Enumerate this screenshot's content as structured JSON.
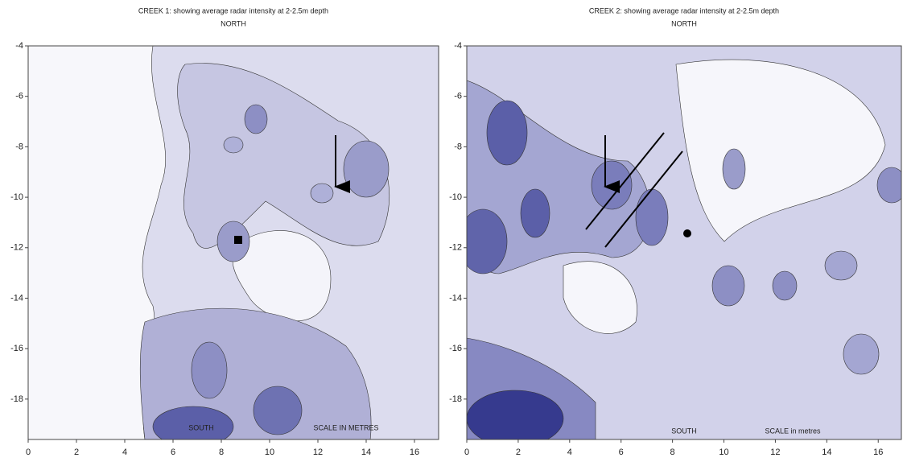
{
  "chart_data": [
    {
      "type": "contour",
      "title": "CREEK 1: showing average radar intensity at 2-2.5m depth",
      "subtitle": "NORTH",
      "annotations": [
        "SOUTH",
        "SCALE IN METRES"
      ],
      "xlim": [
        0,
        17
      ],
      "ylim": [
        -19.6,
        -4
      ],
      "xticks": [
        0,
        2,
        4,
        6,
        8,
        10,
        12,
        14,
        16
      ],
      "yticks": [
        -4,
        -6,
        -8,
        -10,
        -12,
        -14,
        -16,
        -18
      ]
    },
    {
      "type": "contour",
      "title": "CREEK 2: showing average radar intensity at 2-2.5m depth",
      "subtitle": "NORTH",
      "annotations": [
        "SOUTH",
        "SCALE  in metres"
      ],
      "xlim": [
        0,
        16.9
      ],
      "ylim": [
        -19.6,
        -4
      ],
      "xticks": [
        0,
        2,
        4,
        6,
        8,
        10,
        12,
        14,
        16
      ],
      "yticks": [
        -4,
        -6,
        -8,
        -10,
        -12,
        -14,
        -16,
        -18
      ]
    }
  ]
}
